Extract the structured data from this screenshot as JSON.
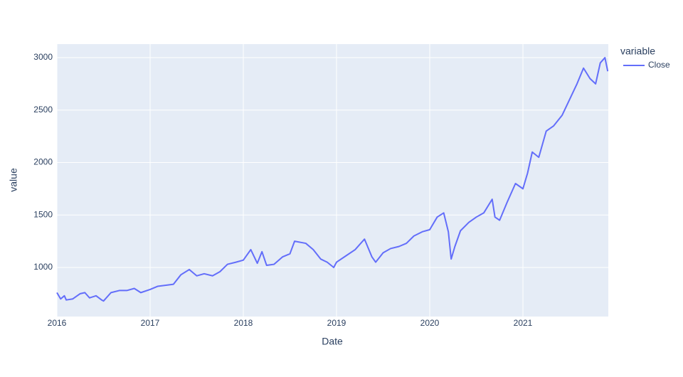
{
  "chart_data": {
    "type": "line",
    "x_label": "Date",
    "y_label": "value",
    "legend_title": "variable",
    "legend": "top-right",
    "grid": true,
    "xlim": [
      2016,
      2021.916
    ],
    "xticks": [
      2016,
      2017,
      2018,
      2019,
      2020,
      2021
    ],
    "ylim": [
      532,
      3129
    ],
    "yticks": [
      1000,
      1500,
      2000,
      2500,
      3000
    ],
    "x": [
      2016.0,
      2016.04,
      2016.08,
      2016.1,
      2016.17,
      2016.25,
      2016.3,
      2016.35,
      2016.42,
      2016.48,
      2016.5,
      2016.58,
      2016.67,
      2016.75,
      2016.83,
      2016.9,
      2017.0,
      2017.08,
      2017.17,
      2017.25,
      2017.33,
      2017.42,
      2017.5,
      2017.58,
      2017.67,
      2017.75,
      2017.83,
      2017.92,
      2018.0,
      2018.08,
      2018.15,
      2018.2,
      2018.25,
      2018.33,
      2018.42,
      2018.5,
      2018.55,
      2018.67,
      2018.75,
      2018.83,
      2018.9,
      2018.97,
      2019.0,
      2019.1,
      2019.2,
      2019.3,
      2019.38,
      2019.42,
      2019.5,
      2019.58,
      2019.67,
      2019.75,
      2019.83,
      2019.92,
      2020.0,
      2020.08,
      2020.15,
      2020.2,
      2020.23,
      2020.27,
      2020.33,
      2020.42,
      2020.5,
      2020.58,
      2020.67,
      2020.7,
      2020.75,
      2020.83,
      2020.92,
      2021.0,
      2021.05,
      2021.1,
      2021.17,
      2021.25,
      2021.33,
      2021.42,
      2021.5,
      2021.58,
      2021.65,
      2021.72,
      2021.78,
      2021.83,
      2021.88,
      2021.91
    ],
    "series": [
      {
        "name": "Close",
        "color": "#636efa",
        "values": [
          760,
          700,
          730,
          690,
          700,
          750,
          760,
          710,
          730,
          690,
          680,
          760,
          780,
          780,
          800,
          760,
          790,
          820,
          830,
          840,
          930,
          980,
          920,
          940,
          920,
          960,
          1030,
          1050,
          1070,
          1170,
          1040,
          1150,
          1020,
          1030,
          1100,
          1130,
          1250,
          1230,
          1170,
          1080,
          1050,
          1000,
          1050,
          1110,
          1170,
          1270,
          1100,
          1050,
          1140,
          1180,
          1200,
          1230,
          1300,
          1340,
          1360,
          1480,
          1520,
          1340,
          1080,
          1200,
          1350,
          1430,
          1480,
          1520,
          1650,
          1480,
          1450,
          1620,
          1800,
          1750,
          1900,
          2100,
          2050,
          2300,
          2350,
          2450,
          2600,
          2750,
          2900,
          2800,
          2750,
          2950,
          3000,
          2870
        ]
      }
    ]
  }
}
